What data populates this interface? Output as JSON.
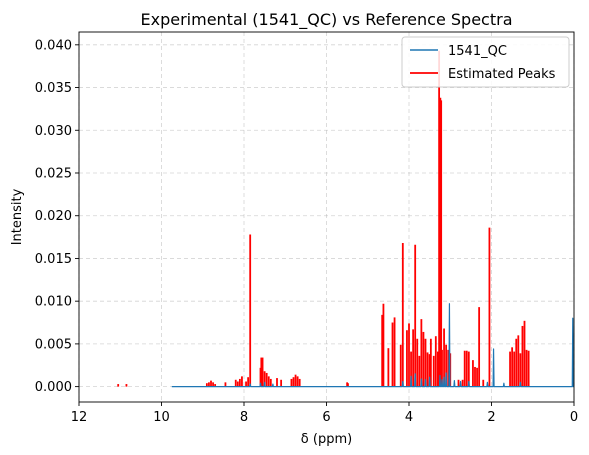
{
  "chart_data": {
    "type": "line",
    "title": "Experimental (1541_QC) vs Reference Spectra",
    "xlabel": "δ (ppm)",
    "ylabel": "Intensity",
    "xlim": [
      12,
      0
    ],
    "ylim": [
      -0.0018,
      0.0415
    ],
    "x_inverted": true,
    "grid": true,
    "legend_position": "top-right",
    "xticks": [
      12,
      10,
      8,
      6,
      4,
      2,
      0
    ],
    "xtick_labels": [
      "12",
      "10",
      "8",
      "6",
      "4",
      "2",
      "0"
    ],
    "yticks": [
      0.0,
      0.005,
      0.01,
      0.015,
      0.02,
      0.025,
      0.03,
      0.035,
      0.04
    ],
    "ytick_labels": [
      "0.000",
      "0.005",
      "0.010",
      "0.015",
      "0.020",
      "0.025",
      "0.030",
      "0.035",
      "0.040"
    ],
    "series": [
      {
        "name": "1541_QC",
        "style": "line",
        "color": "#1f77b4",
        "baseline_range": [
          9.75,
          0.0
        ],
        "peaks": [
          [
            7.85,
            0.0003
          ],
          [
            7.6,
            0.0004
          ],
          [
            7.5,
            0.0005
          ],
          [
            7.3,
            0.0003
          ],
          [
            4.15,
            0.0006
          ],
          [
            3.95,
            0.0012
          ],
          [
            3.85,
            0.0015
          ],
          [
            3.7,
            0.0009
          ],
          [
            3.6,
            0.0008
          ],
          [
            3.5,
            0.0011
          ],
          [
            3.25,
            0.0013
          ],
          [
            3.2,
            0.0008
          ],
          [
            3.15,
            0.0011
          ],
          [
            3.1,
            0.0016
          ],
          [
            3.02,
            0.0097
          ],
          [
            2.9,
            0.0007
          ],
          [
            2.75,
            0.0006
          ],
          [
            2.55,
            0.0006
          ],
          [
            2.1,
            0.0005
          ],
          [
            1.95,
            0.0044
          ],
          [
            1.7,
            0.0004
          ],
          [
            1.3,
            0.0005
          ],
          [
            0.03,
            0.008
          ]
        ]
      },
      {
        "name": "Estimated Peaks",
        "style": "sticks",
        "color": "#ff0000",
        "peaks": [
          [
            11.05,
            0.0003
          ],
          [
            10.85,
            0.0003
          ],
          [
            8.9,
            0.0004
          ],
          [
            8.85,
            0.0005
          ],
          [
            8.8,
            0.0007
          ],
          [
            8.75,
            0.0005
          ],
          [
            8.7,
            0.0003
          ],
          [
            8.45,
            0.0005
          ],
          [
            8.2,
            0.0008
          ],
          [
            8.15,
            0.0006
          ],
          [
            8.1,
            0.0009
          ],
          [
            8.05,
            0.0012
          ],
          [
            7.95,
            0.0006
          ],
          [
            7.9,
            0.0011
          ],
          [
            7.85,
            0.0178
          ],
          [
            7.6,
            0.0022
          ],
          [
            7.58,
            0.0034
          ],
          [
            7.55,
            0.0034
          ],
          [
            7.5,
            0.0018
          ],
          [
            7.45,
            0.0016
          ],
          [
            7.4,
            0.0012
          ],
          [
            7.35,
            0.0009
          ],
          [
            7.2,
            0.001
          ],
          [
            7.1,
            0.0008
          ],
          [
            6.85,
            0.0009
          ],
          [
            6.8,
            0.0011
          ],
          [
            6.75,
            0.0014
          ],
          [
            6.7,
            0.0012
          ],
          [
            6.65,
            0.0009
          ],
          [
            5.5,
            0.0005
          ],
          [
            5.48,
            0.0004
          ],
          [
            4.65,
            0.0084
          ],
          [
            4.62,
            0.0097
          ],
          [
            4.5,
            0.0045
          ],
          [
            4.4,
            0.0075
          ],
          [
            4.35,
            0.0081
          ],
          [
            4.2,
            0.0049
          ],
          [
            4.15,
            0.0168
          ],
          [
            4.05,
            0.0066
          ],
          [
            4.0,
            0.0074
          ],
          [
            3.95,
            0.0041
          ],
          [
            3.9,
            0.0067
          ],
          [
            3.85,
            0.0166
          ],
          [
            3.8,
            0.0056
          ],
          [
            3.75,
            0.0036
          ],
          [
            3.7,
            0.0079
          ],
          [
            3.65,
            0.0064
          ],
          [
            3.6,
            0.0056
          ],
          [
            3.55,
            0.004
          ],
          [
            3.5,
            0.0038
          ],
          [
            3.47,
            0.0056
          ],
          [
            3.4,
            0.0036
          ],
          [
            3.35,
            0.0059
          ],
          [
            3.3,
            0.0041
          ],
          [
            3.27,
            0.0393
          ],
          [
            3.24,
            0.0338
          ],
          [
            3.22,
            0.0335
          ],
          [
            3.2,
            0.0043
          ],
          [
            3.15,
            0.0068
          ],
          [
            3.1,
            0.0049
          ],
          [
            3.05,
            0.0043
          ],
          [
            3.0,
            0.0039
          ],
          [
            2.8,
            0.0008
          ],
          [
            2.7,
            0.0008
          ],
          [
            2.65,
            0.0042
          ],
          [
            2.6,
            0.0042
          ],
          [
            2.55,
            0.0041
          ],
          [
            2.45,
            0.0031
          ],
          [
            2.4,
            0.0023
          ],
          [
            2.35,
            0.0022
          ],
          [
            2.3,
            0.0093
          ],
          [
            2.2,
            0.0008
          ],
          [
            2.05,
            0.0186
          ],
          [
            1.95,
            0.0006
          ],
          [
            1.55,
            0.0041
          ],
          [
            1.5,
            0.0046
          ],
          [
            1.45,
            0.0041
          ],
          [
            1.4,
            0.0056
          ],
          [
            1.35,
            0.006
          ],
          [
            1.3,
            0.0039
          ],
          [
            1.25,
            0.0071
          ],
          [
            1.2,
            0.0077
          ],
          [
            1.15,
            0.0043
          ],
          [
            1.1,
            0.0042
          ]
        ]
      }
    ]
  }
}
